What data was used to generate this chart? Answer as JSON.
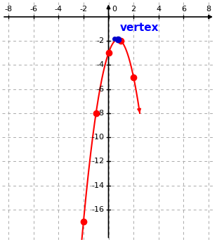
{
  "xlim": [
    -8.5,
    8.5
  ],
  "ylim": [
    -18.5,
    1.2
  ],
  "xticks": [
    -8,
    -6,
    -4,
    -2,
    0,
    2,
    4,
    6,
    8
  ],
  "yticks": [
    -16,
    -14,
    -12,
    -10,
    -8,
    -6,
    -4,
    -2
  ],
  "points_red": [
    [
      -2,
      -17
    ],
    [
      -1,
      -8
    ],
    [
      0,
      -3
    ],
    [
      1,
      -2
    ],
    [
      2,
      -5
    ]
  ],
  "vertex_x": 0.75,
  "vertex_y": -1.875,
  "vertex_label": "vertex",
  "vertex_label_color": "#0000ff",
  "vertex_label_fontsize": 11,
  "point_color_red": "#ff0000",
  "point_color_blue": "#0000cc",
  "curve_color": "#ff0000",
  "curve_linewidth": 1.5,
  "point_size_red": 6,
  "point_size_blue": 6,
  "background_color": "#ffffff",
  "grid_color": "#aaaaaa",
  "coeff_a": -2,
  "coeff_b": 3,
  "coeff_c": -3,
  "x_curve_min": -2.35,
  "x_curve_max": 2.5
}
